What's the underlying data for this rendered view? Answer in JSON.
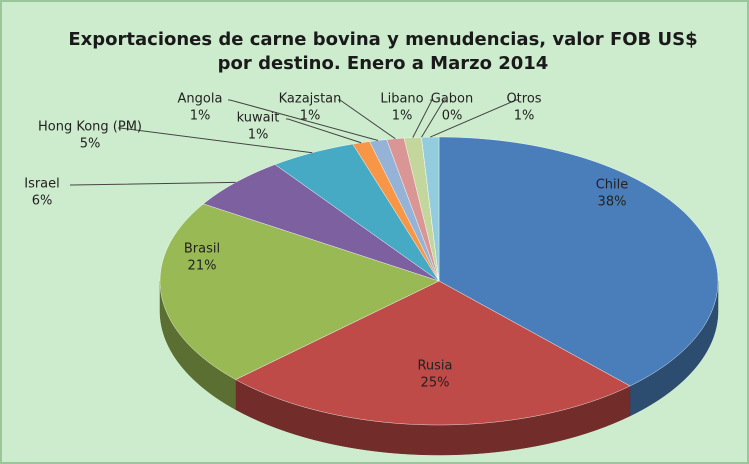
{
  "chart_data": {
    "type": "pie",
    "title": "Exportaciones de carne bovina y menudencias, valor FOB US$ por destino. Enero a Marzo 2014",
    "categories": [
      "Chile",
      "Rusia",
      "Brasil",
      "Israel",
      "Hong Kong (PM)",
      "kuwait",
      "Angola",
      "Kazajstan",
      "Libano",
      "Gabon",
      "Otros"
    ],
    "values": [
      38,
      25,
      21,
      6,
      5,
      1,
      1,
      1,
      1,
      0,
      1
    ],
    "value_labels": [
      "38%",
      "25%",
      "21%",
      "6%",
      "5%",
      "1%",
      "1%",
      "1%",
      "1%",
      "0%",
      "1%"
    ],
    "colors": [
      "#4a7ebb",
      "#be4b48",
      "#98b954",
      "#7d60a0",
      "#46aac5",
      "#f79646",
      "#95b3d7",
      "#d99694",
      "#c3d69b",
      "#b3a2c7",
      "#93cddd"
    ]
  }
}
